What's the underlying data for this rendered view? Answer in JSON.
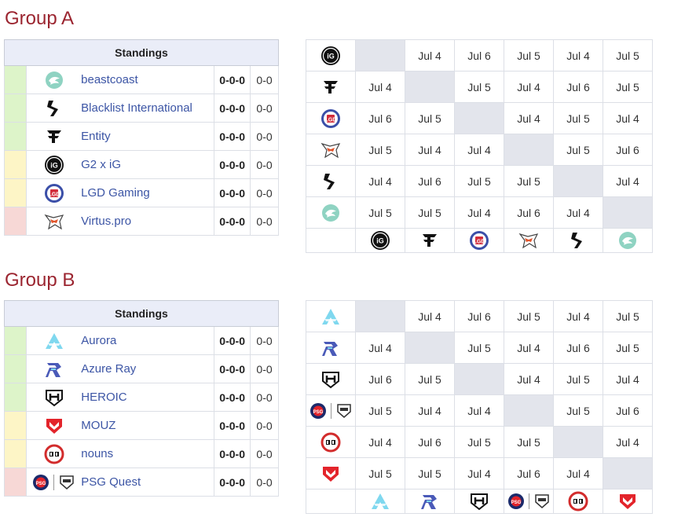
{
  "groups": [
    {
      "title": "Group A",
      "standings_header": "Standings",
      "teams": [
        {
          "name": "beastcoast",
          "record": "0-0-0",
          "score": "0-0",
          "seed_color": "green",
          "logo": "beastcoast-icon"
        },
        {
          "name": "Blacklist International",
          "record": "0-0-0",
          "score": "0-0",
          "seed_color": "green",
          "logo": "blacklist-icon"
        },
        {
          "name": "Entity",
          "record": "0-0-0",
          "score": "0-0",
          "seed_color": "green",
          "logo": "entity-icon"
        },
        {
          "name": "G2 x iG",
          "record": "0-0-0",
          "score": "0-0",
          "seed_color": "yellow",
          "logo": "g2ig-icon"
        },
        {
          "name": "LGD Gaming",
          "record": "0-0-0",
          "score": "0-0",
          "seed_color": "yellow",
          "logo": "lgd-icon"
        },
        {
          "name": "Virtus.pro",
          "record": "0-0-0",
          "score": "0-0",
          "seed_color": "red",
          "logo": "virtuspro-icon"
        }
      ],
      "matrix_rows": [
        "g2ig-icon",
        "entity-icon",
        "lgd-icon",
        "virtuspro-icon",
        "blacklist-icon",
        "beastcoast-icon"
      ],
      "matrix_cols": [
        "g2ig-icon",
        "entity-icon",
        "lgd-icon",
        "virtuspro-icon",
        "blacklist-icon",
        "beastcoast-icon"
      ],
      "matrix": [
        [
          "",
          "Jul 4",
          "Jul 6",
          "Jul 5",
          "Jul 4",
          "Jul 5"
        ],
        [
          "Jul 4",
          "",
          "Jul 5",
          "Jul 4",
          "Jul 6",
          "Jul 5"
        ],
        [
          "Jul 6",
          "Jul 5",
          "",
          "Jul 4",
          "Jul 5",
          "Jul 4"
        ],
        [
          "Jul 5",
          "Jul 4",
          "Jul 4",
          "",
          "Jul 5",
          "Jul 6"
        ],
        [
          "Jul 4",
          "Jul 6",
          "Jul 5",
          "Jul 5",
          "",
          "Jul 4"
        ],
        [
          "Jul 5",
          "Jul 5",
          "Jul 4",
          "Jul 6",
          "Jul 4",
          ""
        ]
      ]
    },
    {
      "title": "Group B",
      "standings_header": "Standings",
      "teams": [
        {
          "name": "Aurora",
          "record": "0-0-0",
          "score": "0-0",
          "seed_color": "green",
          "logo": "aurora-icon"
        },
        {
          "name": "Azure Ray",
          "record": "0-0-0",
          "score": "0-0",
          "seed_color": "green",
          "logo": "azureray-icon"
        },
        {
          "name": "HEROIC",
          "record": "0-0-0",
          "score": "0-0",
          "seed_color": "green",
          "logo": "heroic-icon"
        },
        {
          "name": "MOUZ",
          "record": "0-0-0",
          "score": "0-0",
          "seed_color": "yellow",
          "logo": "mouz-icon"
        },
        {
          "name": "nouns",
          "record": "0-0-0",
          "score": "0-0",
          "seed_color": "yellow",
          "logo": "nouns-icon"
        },
        {
          "name": "PSG Quest",
          "record": "0-0-0",
          "score": "0-0",
          "seed_color": "red",
          "logo": "psgquest-icon"
        }
      ],
      "matrix_rows": [
        "aurora-icon",
        "azureray-icon",
        "heroic-icon",
        "psgquest-icon",
        "nouns-icon",
        "mouz-icon"
      ],
      "matrix_cols": [
        "aurora-icon",
        "azureray-icon",
        "heroic-icon",
        "psgquest-icon",
        "nouns-icon",
        "mouz-icon"
      ],
      "matrix": [
        [
          "",
          "Jul 4",
          "Jul 6",
          "Jul 5",
          "Jul 4",
          "Jul 5"
        ],
        [
          "Jul 4",
          "",
          "Jul 5",
          "Jul 4",
          "Jul 6",
          "Jul 5"
        ],
        [
          "Jul 6",
          "Jul 5",
          "",
          "Jul 4",
          "Jul 5",
          "Jul 4"
        ],
        [
          "Jul 5",
          "Jul 4",
          "Jul 4",
          "",
          "Jul 5",
          "Jul 6"
        ],
        [
          "Jul 4",
          "Jul 6",
          "Jul 5",
          "Jul 5",
          "",
          "Jul 4"
        ],
        [
          "Jul 5",
          "Jul 5",
          "Jul 4",
          "Jul 6",
          "Jul 4",
          ""
        ]
      ]
    }
  ],
  "colors": {
    "title": "#9b2530",
    "link": "#3c55a5",
    "header_bg": "#eaedf8",
    "self_cell": "#e3e5ec",
    "seed_green": "#ddf4c9",
    "seed_yellow": "#fdf5c6",
    "seed_red": "#f7d8d6"
  }
}
